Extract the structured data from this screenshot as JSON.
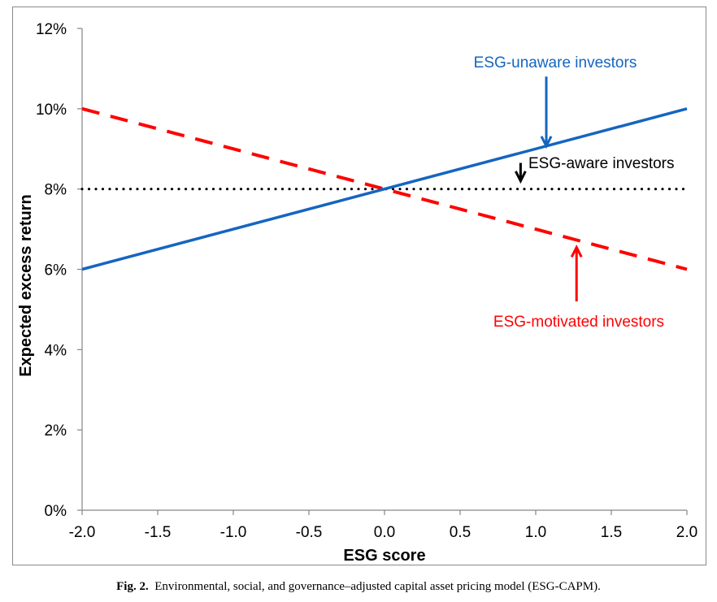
{
  "chart_data": {
    "type": "line",
    "title": "",
    "xlabel": "ESG score",
    "ylabel": "Expected excess return",
    "xlim": [
      -2.0,
      2.0
    ],
    "ylim": [
      0,
      12
    ],
    "x_ticks": [
      "-2.0",
      "-1.5",
      "-1.0",
      "-0.5",
      "0.0",
      "0.5",
      "1.0",
      "1.5",
      "2.0"
    ],
    "x_tick_values": [
      -2.0,
      -1.5,
      -1.0,
      -0.5,
      0.0,
      0.5,
      1.0,
      1.5,
      2.0
    ],
    "y_ticks": [
      "0%",
      "2%",
      "4%",
      "6%",
      "8%",
      "10%",
      "12%"
    ],
    "y_tick_values": [
      0,
      2,
      4,
      6,
      8,
      10,
      12
    ],
    "grid": false,
    "series": [
      {
        "name": "ESG-unaware investors",
        "style": "solid",
        "color": "#1565C0",
        "x": [
          -2.0,
          2.0
        ],
        "y": [
          6,
          10
        ]
      },
      {
        "name": "ESG-aware investors",
        "style": "dotted",
        "color": "#000000",
        "x": [
          -2.0,
          2.0
        ],
        "y": [
          8,
          8
        ]
      },
      {
        "name": "ESG-motivated investors",
        "style": "dashed",
        "color": "#FF0000",
        "x": [
          -2.0,
          2.0
        ],
        "y": [
          10,
          6
        ]
      }
    ],
    "annotations": [
      {
        "text": "ESG-unaware investors",
        "color": "#1565C0",
        "arrow_to": [
          1.07,
          9.07
        ],
        "arrow_from": [
          1.07,
          10.8
        ]
      },
      {
        "text": "ESG-aware investors",
        "color": "#000000",
        "arrow_to": [
          0.9,
          8.2
        ],
        "arrow_from": [
          0.9,
          8.65
        ]
      },
      {
        "text": "ESG-motivated investors",
        "color": "#FF0000",
        "arrow_to": [
          1.27,
          6.55
        ],
        "arrow_from": [
          1.27,
          5.2
        ]
      }
    ]
  },
  "caption": {
    "label": "Fig. 2.",
    "text": "Environmental, social, and governance–adjusted capital asset pricing model (ESG-CAPM)."
  }
}
